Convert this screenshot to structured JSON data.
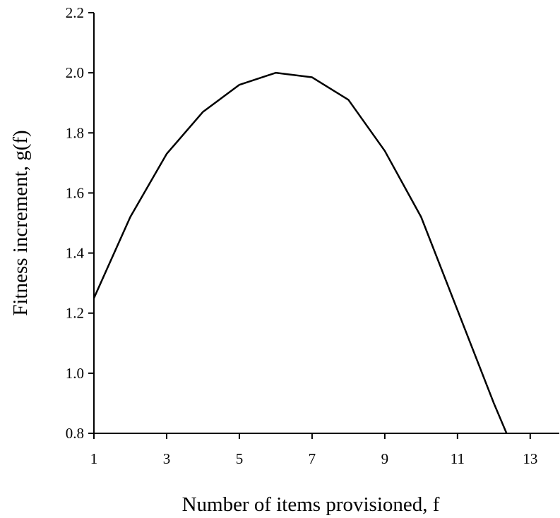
{
  "chart_data": {
    "type": "line",
    "xlabel": "Number of items provisioned, f",
    "ylabel": "Fitness increment, g(f)",
    "xlim": [
      1,
      13.8
    ],
    "ylim": [
      0.8,
      2.2
    ],
    "xticks": [
      1,
      3,
      5,
      7,
      9,
      11,
      13
    ],
    "yticks": [
      {
        "value": 0.8,
        "label": "0.8"
      },
      {
        "value": 1.0,
        "label": "1.0"
      },
      {
        "value": 1.2,
        "label": "1.2"
      },
      {
        "value": 1.4,
        "label": "1.4"
      },
      {
        "value": 1.6,
        "label": "1.6"
      },
      {
        "value": 1.8,
        "label": "1.8"
      },
      {
        "value": 2.0,
        "label": "2.0"
      },
      {
        "value": 2.2,
        "label": "2.2"
      }
    ],
    "color": "#000000",
    "x": [
      1,
      2,
      3,
      4,
      5,
      6,
      7,
      8,
      9,
      10,
      11,
      12,
      12.35
    ],
    "values": [
      1.25,
      1.52,
      1.73,
      1.87,
      1.96,
      2.0,
      1.985,
      1.91,
      1.74,
      1.52,
      1.21,
      0.9,
      0.8
    ]
  }
}
